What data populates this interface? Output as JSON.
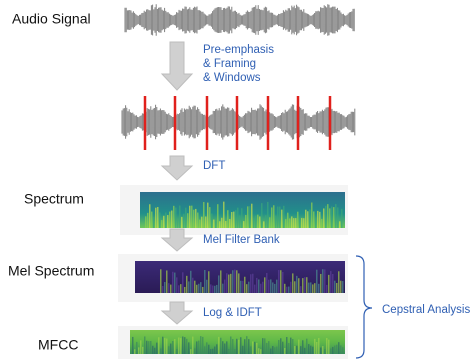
{
  "stages": [
    "Audio Signal",
    "Spectrum",
    "Mel Spectrum",
    "MFCC"
  ],
  "transitions": [
    [
      "Pre-emphasis",
      "& Framing",
      "& Windows"
    ],
    [
      "DFT"
    ],
    [
      "Mel Filter Bank"
    ],
    [
      "Log & IDFT"
    ]
  ],
  "group_label": "Cepstral Analysis"
}
